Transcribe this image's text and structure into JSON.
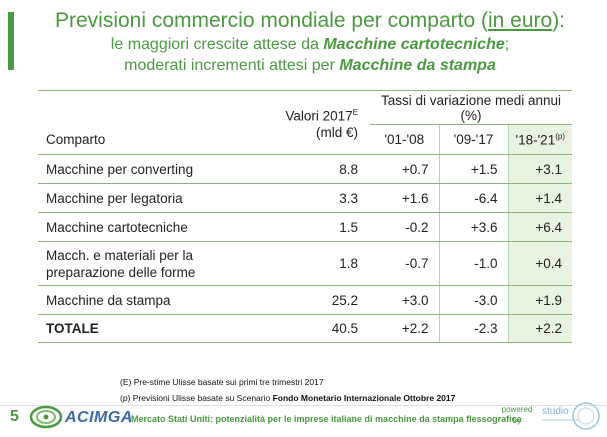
{
  "header": {
    "title_prefix": "Previsioni commercio mondiale per comparto (",
    "title_underlined": "in euro",
    "title_suffix": "):",
    "subtitle_line1_prefix": "le maggiori crescite attese da ",
    "subtitle_line1_bold": "Macchine cartotecniche",
    "subtitle_line1_suffix": ";",
    "subtitle_line2_prefix": "moderati incrementi attesi per ",
    "subtitle_line2_bold": "Macchine da stampa"
  },
  "table": {
    "col_comparto": "Comparto",
    "col_valori_line1": "Valori 2017",
    "col_valori_sup": "E",
    "col_valori_line2": "(mld €)",
    "col_tassi_bold": "Tassi di variazione medi annui",
    "col_tassi_unit": " (%)",
    "periods": [
      "'01-'08",
      "'09-'17",
      "'18-'21"
    ],
    "period3_sup": "(p)",
    "rows": [
      {
        "name": "Macchine per converting",
        "value": "8.8",
        "r1": "+0.7",
        "r2": "+1.5",
        "r3": "+3.1"
      },
      {
        "name": "Macchine per legatoria",
        "value": "3.3",
        "r1": "+1.6",
        "r2": "-6.4",
        "r3": "+1.4"
      },
      {
        "name": "Macchine cartotecniche",
        "value": "1.5",
        "r1": "-0.2",
        "r2": "+3.6",
        "r3": "+6.4"
      },
      {
        "name_line1": "Macch. e materiali per la",
        "name_line2": "preparazione delle forme",
        "value": "1.8",
        "r1": "-0.7",
        "r2": "-1.0",
        "r3": "+0.4"
      },
      {
        "name": "Macchine da stampa",
        "value": "25.2",
        "r1": "+3.0",
        "r2": "-3.0",
        "r3": "+1.9"
      }
    ],
    "total": {
      "name": "TOTALE",
      "value": "40.5",
      "r1": "+2.2",
      "r2": "-2.3",
      "r3": "+2.2"
    }
  },
  "notes": {
    "note1": "(E) Pre-stime Ulisse basate sui primi tre trimestri 2017",
    "note2_prefix": "(p) Previsioni Ulisse basate su Scenario ",
    "note2_bold": "Fondo Monetario Internazionale Ottobre 2017"
  },
  "footer": {
    "page_number": "5",
    "logo_text": "ACIMGA",
    "caption": "Mercato Stati Uniti: potenzialità per le imprese italiane di macchine da stampa flessografica",
    "powered_line1": "powered",
    "powered_line2": "by",
    "studio_logo_text": "studio"
  },
  "colors": {
    "brand_green": "#4a9a3f",
    "positive_blue": "#2c5fa8",
    "negative_red": "#d22323",
    "logo_blue": "#3a6aa8"
  }
}
